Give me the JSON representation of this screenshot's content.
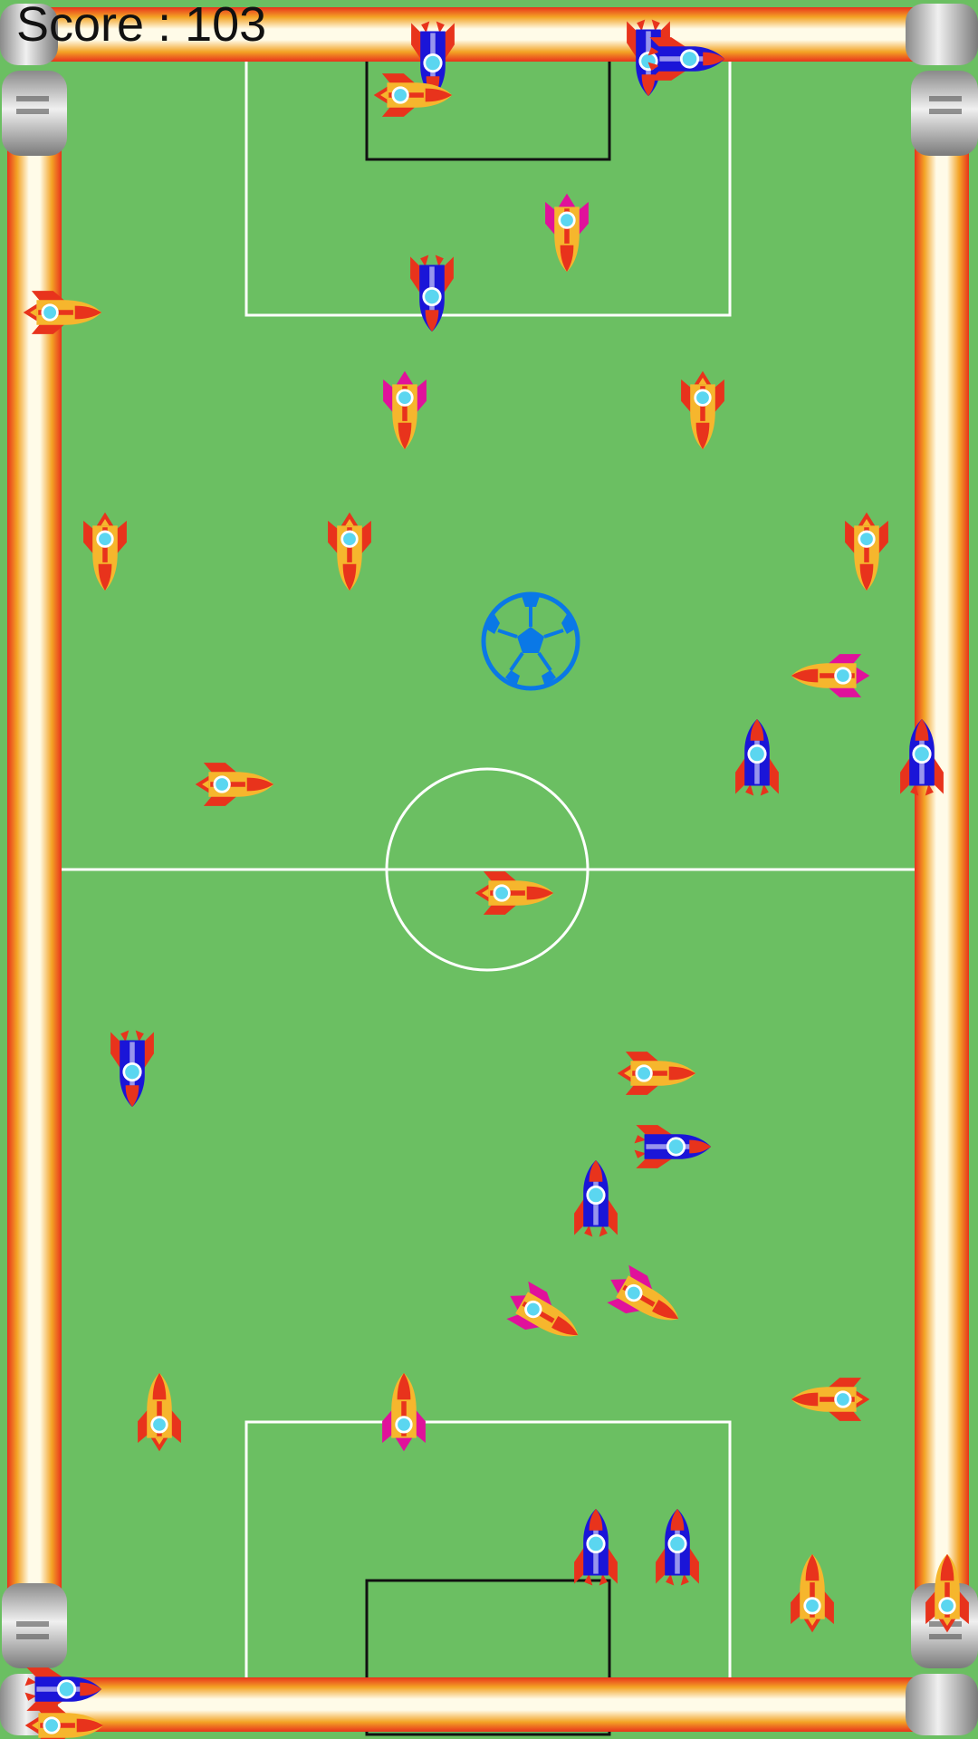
{
  "hud": {
    "score_label": "Score : 103"
  },
  "colors": {
    "field": "#6bbf62",
    "line": "#ffffff",
    "goal_frame": "#111111",
    "tube_red": "#e8331c",
    "tube_orange": "#f3a325",
    "tube_core": "#fffbe8",
    "ball": "#0a78e6",
    "rocket_orange_body": "#f6b62d",
    "rocket_blue_body": "#1a15d8",
    "fin_red": "#e8331c",
    "fin_magenta": "#e0119b"
  },
  "ball": {
    "icon": "soccer-ball-icon"
  },
  "rockets": [
    {
      "kind": "blue",
      "fin": "red",
      "dir": "down"
    },
    {
      "kind": "orange",
      "fin": "red",
      "dir": "right"
    },
    {
      "kind": "blue",
      "fin": "red",
      "dir": "down"
    },
    {
      "kind": "blue",
      "fin": "red",
      "dir": "right"
    },
    {
      "kind": "orange",
      "fin": "magenta",
      "dir": "down"
    },
    {
      "kind": "blue",
      "fin": "red",
      "dir": "down"
    },
    {
      "kind": "orange",
      "fin": "red",
      "dir": "right"
    },
    {
      "kind": "orange",
      "fin": "magenta",
      "dir": "down"
    },
    {
      "kind": "orange",
      "fin": "red",
      "dir": "down"
    },
    {
      "kind": "orange",
      "fin": "red",
      "dir": "down"
    },
    {
      "kind": "orange",
      "fin": "red",
      "dir": "down"
    },
    {
      "kind": "orange",
      "fin": "red",
      "dir": "down"
    },
    {
      "kind": "orange",
      "fin": "magenta",
      "dir": "left"
    },
    {
      "kind": "blue",
      "fin": "red",
      "dir": "up"
    },
    {
      "kind": "blue",
      "fin": "red",
      "dir": "up"
    },
    {
      "kind": "orange",
      "fin": "red",
      "dir": "right"
    },
    {
      "kind": "orange",
      "fin": "red",
      "dir": "right"
    },
    {
      "kind": "blue",
      "fin": "red",
      "dir": "down"
    },
    {
      "kind": "orange",
      "fin": "red",
      "dir": "right"
    },
    {
      "kind": "blue",
      "fin": "red",
      "dir": "up"
    },
    {
      "kind": "blue",
      "fin": "red",
      "dir": "right"
    },
    {
      "kind": "orange",
      "fin": "magenta",
      "dir": "down-right"
    },
    {
      "kind": "orange",
      "fin": "magenta",
      "dir": "down-right"
    },
    {
      "kind": "orange",
      "fin": "red",
      "dir": "up"
    },
    {
      "kind": "orange",
      "fin": "magenta",
      "dir": "up"
    },
    {
      "kind": "orange",
      "fin": "red",
      "dir": "left"
    },
    {
      "kind": "blue",
      "fin": "red",
      "dir": "up"
    },
    {
      "kind": "blue",
      "fin": "red",
      "dir": "up"
    },
    {
      "kind": "orange",
      "fin": "red",
      "dir": "up"
    },
    {
      "kind": "orange",
      "fin": "red",
      "dir": "up"
    },
    {
      "kind": "blue",
      "fin": "red",
      "dir": "right"
    },
    {
      "kind": "orange",
      "fin": "red",
      "dir": "right"
    }
  ]
}
